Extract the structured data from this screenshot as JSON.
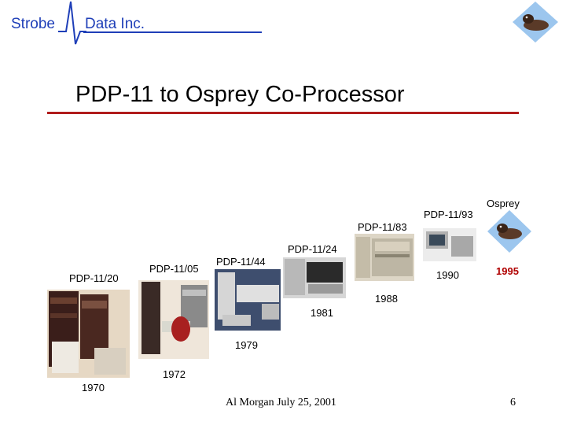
{
  "header": {
    "company_left": "Strobe",
    "company_right": "Data Inc.",
    "title": "PDP-11 to Osprey Co-Processor"
  },
  "timeline": {
    "machines": [
      {
        "name": "PDP-11/20",
        "year": "1970"
      },
      {
        "name": "PDP-11/05",
        "year": "1972"
      },
      {
        "name": "PDP-11/44",
        "year": "1979"
      },
      {
        "name": "PDP-11/24",
        "year": "1981"
      },
      {
        "name": "PDP-11/83",
        "year": "1988"
      },
      {
        "name": "PDP-11/93",
        "year": "1990"
      },
      {
        "name": "Osprey",
        "year": "1995"
      }
    ]
  },
  "footer": {
    "author_date": "Al Morgan July 25, 2001",
    "page_number": "6"
  },
  "colors": {
    "brand_blue": "#1f3fb8",
    "title_rule_red": "#b01c1c",
    "year_highlight_red": "#b00000"
  }
}
